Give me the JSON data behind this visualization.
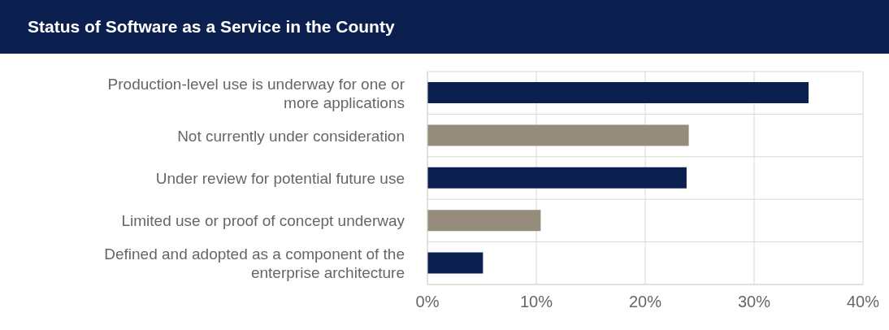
{
  "chart_data": {
    "type": "bar",
    "orientation": "horizontal",
    "title": "Status of Software as a Service in the County",
    "categories": [
      "Production-level use is underway for one or more applications",
      "Not currently under consideration",
      "Under review for potential future use",
      "Limited use or proof of concept underway",
      "Defined and adopted as a component of the enterprise architecture"
    ],
    "values": [
      35,
      24,
      23.8,
      10.4,
      5.1
    ],
    "colors": [
      "#0c2050",
      "#968c7c",
      "#0c2050",
      "#968c7c",
      "#0c2050"
    ],
    "xlim": [
      0,
      40
    ],
    "xticks": [
      {
        "value": 0,
        "label": "0%"
      },
      {
        "value": 10,
        "label": "10%"
      },
      {
        "value": 20,
        "label": "20%"
      },
      {
        "value": 30,
        "label": "30%"
      },
      {
        "value": 40,
        "label": "40%"
      }
    ],
    "grid": true
  }
}
